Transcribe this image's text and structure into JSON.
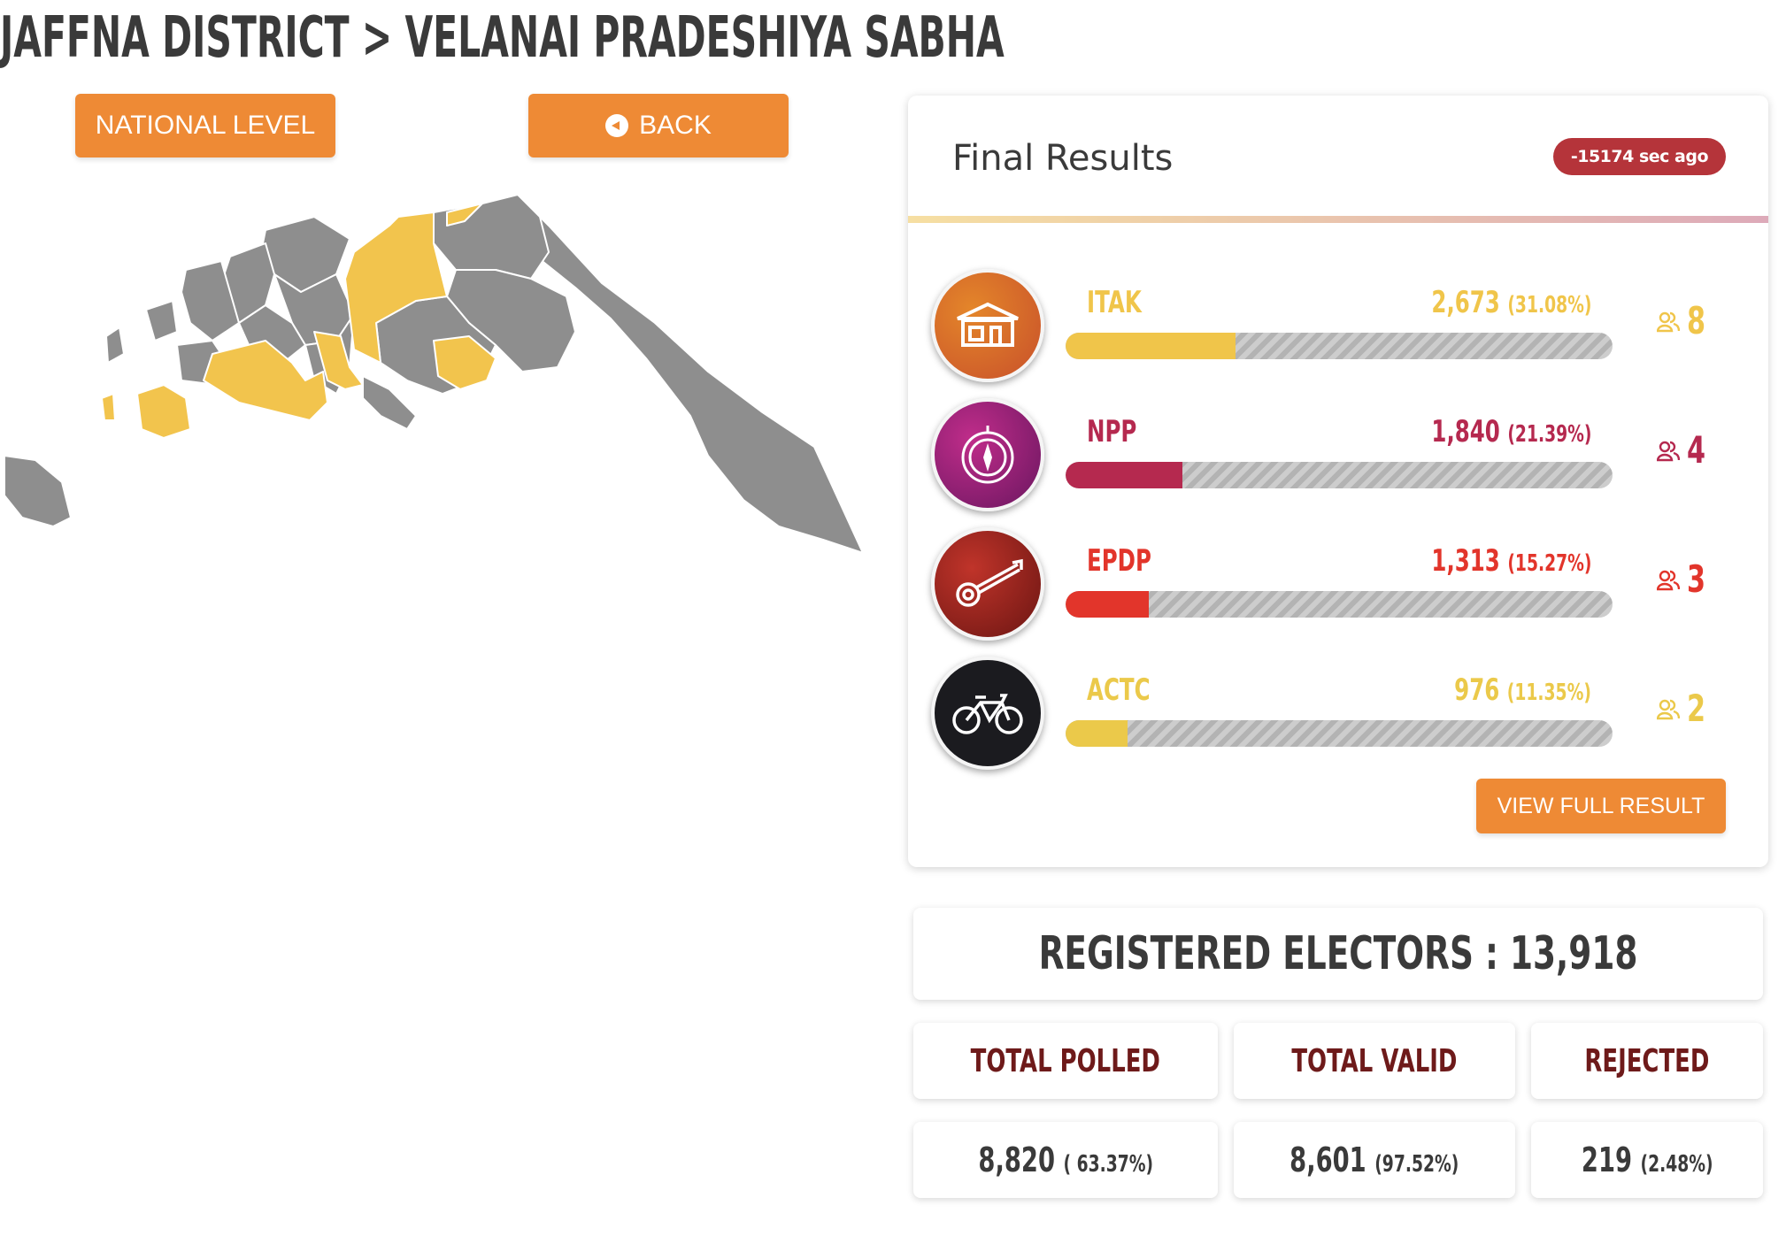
{
  "title": "JAFFNA DISTRICT > VELANAI PRADESHIYA SABHA",
  "nav": {
    "national_label": "NATIONAL LEVEL",
    "back_label": "BACK"
  },
  "results": {
    "heading": "Final Results",
    "updated": "-15174 sec ago",
    "view_full_label": "VIEW FULL RESULT",
    "parties": [
      {
        "name": "ITAK",
        "votes": "2,673",
        "pct": "(31.08%)",
        "share": 31.08,
        "seats": "8",
        "color": "#f0c54a",
        "logo": "house-icon"
      },
      {
        "name": "NPP",
        "votes": "1,840",
        "pct": "(21.39%)",
        "share": 21.39,
        "seats": "4",
        "color": "#b5294f",
        "logo": "compass-icon"
      },
      {
        "name": "EPDP",
        "votes": "1,313",
        "pct": "(15.27%)",
        "share": 15.27,
        "seats": "3",
        "color": "#e2352b",
        "logo": "veena-icon"
      },
      {
        "name": "ACTC",
        "votes": "976",
        "pct": "(11.35%)",
        "share": 11.35,
        "seats": "2",
        "color": "#ebc94a",
        "logo": "bicycle-icon"
      }
    ]
  },
  "stats": {
    "registered_label": "REGISTERED ELECTORS : 13,918",
    "polled_label": "TOTAL POLLED",
    "valid_label": "TOTAL VALID",
    "rejected_label": "REJECTED",
    "polled_value": "8,820",
    "polled_pct": "( 63.37%)",
    "valid_value": "8,601",
    "valid_pct": "(97.52%)",
    "rejected_value": "219",
    "rejected_pct": "(2.48%)"
  },
  "map": {
    "highlight_color": "#f2c44d",
    "base_color": "#8e8e8e"
  }
}
